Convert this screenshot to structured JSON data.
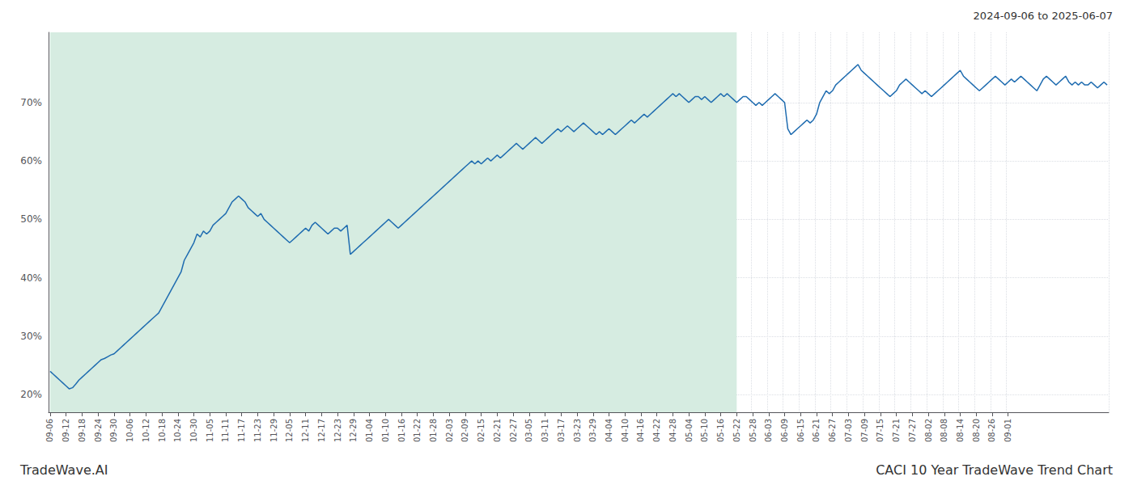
{
  "chart_data": {
    "type": "line",
    "title": "CACI 10 Year TradeWave Trend Chart",
    "subtitle": "2024-09-06 to 2025-06-07",
    "annotations": [
      "TradeWave.AI"
    ],
    "color": "#1f6cb0",
    "grid": true,
    "ylim": [
      17,
      82
    ],
    "yticks": [
      {
        "value": 20,
        "label": "20%"
      },
      {
        "value": 30,
        "label": "30%"
      },
      {
        "value": 40,
        "label": "40%"
      },
      {
        "value": 50,
        "label": "50%"
      },
      {
        "value": 60,
        "label": "60%"
      },
      {
        "value": 70,
        "label": "70%"
      }
    ],
    "shaded_region": {
      "start": 0,
      "end": 215,
      "color": "#d6ece1"
    },
    "categories": [
      "09-06",
      null,
      null,
      null,
      null,
      "09-12",
      null,
      null,
      null,
      null,
      "09-18",
      null,
      null,
      null,
      null,
      "09-24",
      null,
      null,
      null,
      null,
      "09-30",
      null,
      null,
      null,
      null,
      "10-06",
      null,
      null,
      null,
      null,
      "10-12",
      null,
      null,
      null,
      null,
      "10-18",
      null,
      null,
      null,
      null,
      "10-24",
      null,
      null,
      null,
      null,
      "10-30",
      null,
      null,
      null,
      null,
      "11-05",
      null,
      null,
      null,
      null,
      "11-11",
      null,
      null,
      null,
      null,
      "11-17",
      null,
      null,
      null,
      null,
      "11-23",
      null,
      null,
      null,
      null,
      "11-29",
      null,
      null,
      null,
      null,
      "12-05",
      null,
      null,
      null,
      null,
      "12-11",
      null,
      null,
      null,
      null,
      "12-17",
      null,
      null,
      null,
      null,
      "12-23",
      null,
      null,
      null,
      null,
      "12-29",
      null,
      null,
      null,
      null,
      "01-04",
      null,
      null,
      null,
      null,
      "01-10",
      null,
      null,
      null,
      null,
      "01-16",
      null,
      null,
      null,
      null,
      "01-22",
      null,
      null,
      null,
      null,
      "01-28",
      null,
      null,
      null,
      null,
      "02-03",
      null,
      null,
      null,
      null,
      "02-09",
      null,
      null,
      null,
      null,
      "02-15",
      null,
      null,
      null,
      null,
      "02-21",
      null,
      null,
      null,
      null,
      "02-27",
      null,
      null,
      null,
      null,
      "03-05",
      null,
      null,
      null,
      null,
      "03-11",
      null,
      null,
      null,
      null,
      "03-17",
      null,
      null,
      null,
      null,
      "03-23",
      null,
      null,
      null,
      null,
      "03-29",
      null,
      null,
      null,
      null,
      "04-04",
      null,
      null,
      null,
      null,
      "04-10",
      null,
      null,
      null,
      null,
      "04-16",
      null,
      null,
      null,
      null,
      "04-22",
      null,
      null,
      null,
      null,
      "04-28",
      null,
      null,
      null,
      null,
      "05-04",
      null,
      null,
      null,
      null,
      "05-10",
      null,
      null,
      null,
      null,
      "05-16",
      null,
      null,
      null,
      null,
      "05-22",
      null,
      null,
      null,
      null,
      "05-28",
      null,
      null,
      null,
      null,
      "06-03",
      null,
      null,
      null,
      null,
      "06-09",
      null,
      null,
      null,
      null,
      "06-15",
      null,
      null,
      null,
      null,
      "06-21",
      null,
      null,
      null,
      null,
      "06-27",
      null,
      null,
      null,
      null,
      "07-03",
      null,
      null,
      null,
      null,
      "07-09",
      null,
      null,
      null,
      null,
      "07-15",
      null,
      null,
      null,
      null,
      "07-21",
      null,
      null,
      null,
      null,
      "07-27",
      null,
      null,
      null,
      null,
      "08-02",
      null,
      null,
      null,
      null,
      "08-08",
      null,
      null,
      null,
      null,
      "08-14",
      null,
      null,
      null,
      null,
      "08-20",
      null,
      null,
      null,
      null,
      "08-26",
      null,
      null,
      null,
      null,
      "09-01",
      null,
      null,
      null,
      null,
      null,
      null,
      null,
      null,
      null,
      null,
      null,
      null,
      null,
      null,
      null,
      null,
      null,
      null,
      null,
      null,
      null,
      null,
      null,
      null,
      null,
      null,
      null,
      null,
      null,
      null,
      null
    ],
    "values": [
      24.0,
      23.5,
      23.0,
      22.5,
      22.0,
      21.5,
      21.0,
      21.2,
      21.8,
      22.5,
      23.0,
      23.5,
      24.0,
      24.5,
      25.0,
      25.5,
      26.0,
      26.2,
      26.5,
      26.8,
      27.0,
      27.5,
      28.0,
      28.5,
      29.0,
      29.5,
      30.0,
      30.5,
      31.0,
      31.5,
      32.0,
      32.5,
      33.0,
      33.5,
      34.0,
      35.0,
      36.0,
      37.0,
      38.0,
      39.0,
      40.0,
      41.0,
      43.0,
      44.0,
      45.0,
      46.0,
      47.5,
      47.0,
      48.0,
      47.5,
      48.0,
      49.0,
      49.5,
      50.0,
      50.5,
      51.0,
      52.0,
      53.0,
      53.5,
      54.0,
      53.5,
      53.0,
      52.0,
      51.5,
      51.0,
      50.5,
      51.0,
      50.0,
      49.5,
      49.0,
      48.5,
      48.0,
      47.5,
      47.0,
      46.5,
      46.0,
      46.5,
      47.0,
      47.5,
      48.0,
      48.5,
      48.0,
      49.0,
      49.5,
      49.0,
      48.5,
      48.0,
      47.5,
      48.0,
      48.5,
      48.5,
      48.0,
      48.5,
      49.0,
      44.0,
      44.5,
      45.0,
      45.5,
      46.0,
      46.5,
      47.0,
      47.5,
      48.0,
      48.5,
      49.0,
      49.5,
      50.0,
      49.5,
      49.0,
      48.5,
      49.0,
      49.5,
      50.0,
      50.5,
      51.0,
      51.5,
      52.0,
      52.5,
      53.0,
      53.5,
      54.0,
      54.5,
      55.0,
      55.5,
      56.0,
      56.5,
      57.0,
      57.5,
      58.0,
      58.5,
      59.0,
      59.5,
      60.0,
      59.5,
      60.0,
      59.5,
      60.0,
      60.5,
      60.0,
      60.5,
      61.0,
      60.5,
      61.0,
      61.5,
      62.0,
      62.5,
      63.0,
      62.5,
      62.0,
      62.5,
      63.0,
      63.5,
      64.0,
      63.5,
      63.0,
      63.5,
      64.0,
      64.5,
      65.0,
      65.5,
      65.0,
      65.5,
      66.0,
      65.5,
      65.0,
      65.5,
      66.0,
      66.5,
      66.0,
      65.5,
      65.0,
      64.5,
      65.0,
      64.5,
      65.0,
      65.5,
      65.0,
      64.5,
      65.0,
      65.5,
      66.0,
      66.5,
      67.0,
      66.5,
      67.0,
      67.5,
      68.0,
      67.5,
      68.0,
      68.5,
      69.0,
      69.5,
      70.0,
      70.5,
      71.0,
      71.5,
      71.0,
      71.5,
      71.0,
      70.5,
      70.0,
      70.5,
      71.0,
      71.0,
      70.5,
      71.0,
      70.5,
      70.0,
      70.5,
      71.0,
      71.5,
      71.0,
      71.5,
      71.0,
      70.5,
      70.0,
      70.5,
      71.0,
      71.0,
      70.5,
      70.0,
      69.5,
      70.0,
      69.5,
      70.0,
      70.5,
      71.0,
      71.5,
      71.0,
      70.5,
      70.0,
      65.5,
      64.5,
      65.0,
      65.5,
      66.0,
      66.5,
      67.0,
      66.5,
      67.0,
      68.0,
      70.0,
      71.0,
      72.0,
      71.5,
      72.0,
      73.0,
      73.5,
      74.0,
      74.5,
      75.0,
      75.5,
      76.0,
      76.5,
      75.5,
      75.0,
      74.5,
      74.0,
      73.5,
      73.0,
      72.5,
      72.0,
      71.5,
      71.0,
      71.5,
      72.0,
      73.0,
      73.5,
      74.0,
      73.5,
      73.0,
      72.5,
      72.0,
      71.5,
      72.0,
      71.5,
      71.0,
      71.5,
      72.0,
      72.5,
      73.0,
      73.5,
      74.0,
      74.5,
      75.0,
      75.5,
      74.5,
      74.0,
      73.5,
      73.0,
      72.5,
      72.0,
      72.5,
      73.0,
      73.5,
      74.0,
      74.5,
      74.0,
      73.5,
      73.0,
      73.5,
      74.0,
      73.5,
      74.0,
      74.5,
      74.0,
      73.5,
      73.0,
      72.5,
      72.0,
      73.0,
      74.0,
      74.5,
      74.0,
      73.5,
      73.0,
      73.5,
      74.0,
      74.5,
      73.5,
      73.0,
      73.5,
      73.0,
      73.5,
      73.0,
      73.0,
      73.5,
      73.0,
      72.5,
      73.0,
      73.5,
      73.0
    ]
  }
}
